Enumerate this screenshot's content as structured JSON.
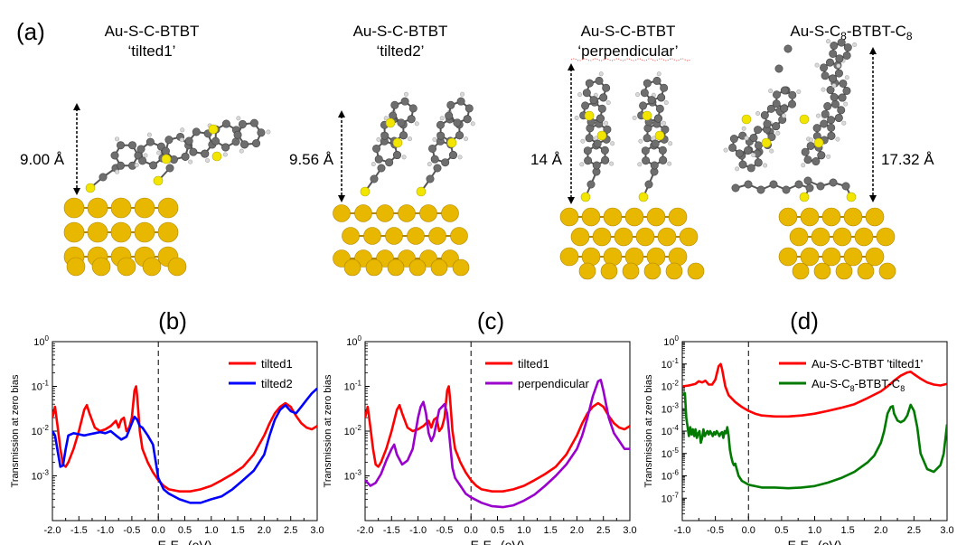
{
  "figure": {
    "label_a": "(a)",
    "molecules": [
      {
        "title_line1": "Au-S-C-BTBT",
        "title_line2": "‘tilted1’",
        "distance": "9.00 Å"
      },
      {
        "title_line1": "Au-S-C-BTBT",
        "title_line2": "‘tilted2’",
        "distance": "9.56 Å"
      },
      {
        "title_line1": "Au-S-C-BTBT",
        "title_line2": "‘perpendicular’",
        "distance": "14 Å"
      },
      {
        "title_line1_main": "Au-S-C",
        "title_line1_sub": "8",
        "title_line1_mid": "-BTBT-C",
        "title_line1_sub2": "8",
        "distance": "17.32 Å"
      }
    ],
    "colors": {
      "gold": "#e8b800",
      "gold_dark": "#b08600",
      "carbon": "#6e6e6e",
      "sulfur": "#f2e600",
      "hydrogen": "#d9d9d9"
    }
  },
  "chart_data": [
    {
      "type": "line",
      "panel_label": "(b)",
      "xlabel": "E-E",
      "xlabel_sub": "F",
      "xlabel_unit": " (eV)",
      "ylabel": "Transmission at zero bias",
      "yscale": "log",
      "xlim": [
        -2.0,
        3.0
      ],
      "ylim": [
        0.0001,
        1
      ],
      "xticks": [
        "-2.0",
        "-1.5",
        "-1.0",
        "-0.5",
        "0.0",
        "0.5",
        "1.0",
        "1.5",
        "2.0",
        "2.5",
        "3.0"
      ],
      "yticks": [
        {
          "base": "10",
          "exp": "-3",
          "v": -3
        },
        {
          "base": "10",
          "exp": "-2",
          "v": -2
        },
        {
          "base": "10",
          "exp": "-1",
          "v": -1
        },
        {
          "base": "10",
          "exp": "0",
          "v": 0
        }
      ],
      "legend_position": "top-right",
      "series": [
        {
          "name": "tilted1",
          "color": "#ff0000",
          "x": [
            -2.0,
            -1.95,
            -1.9,
            -1.85,
            -1.8,
            -1.75,
            -1.7,
            -1.6,
            -1.5,
            -1.4,
            -1.35,
            -1.3,
            -1.2,
            -1.1,
            -1.0,
            -0.9,
            -0.8,
            -0.75,
            -0.7,
            -0.65,
            -0.6,
            -0.55,
            -0.5,
            -0.45,
            -0.42,
            -0.4,
            -0.35,
            -0.3,
            -0.2,
            -0.1,
            0.0,
            0.1,
            0.2,
            0.4,
            0.6,
            0.8,
            1.0,
            1.2,
            1.4,
            1.6,
            1.8,
            2.0,
            2.1,
            2.2,
            2.3,
            2.4,
            2.5,
            2.6,
            2.7,
            2.8,
            2.9,
            3.0
          ],
          "y": [
            0.02,
            0.035,
            0.012,
            0.004,
            0.0018,
            0.0016,
            0.002,
            0.004,
            0.01,
            0.03,
            0.038,
            0.025,
            0.012,
            0.01,
            0.011,
            0.013,
            0.017,
            0.012,
            0.018,
            0.02,
            0.01,
            0.012,
            0.02,
            0.08,
            0.1,
            0.06,
            0.01,
            0.004,
            0.002,
            0.0012,
            0.0008,
            0.0006,
            0.0005,
            0.00045,
            0.00045,
            0.0005,
            0.0006,
            0.0008,
            0.0011,
            0.0016,
            0.003,
            0.008,
            0.015,
            0.025,
            0.035,
            0.042,
            0.035,
            0.022,
            0.015,
            0.012,
            0.011,
            0.013
          ]
        },
        {
          "name": "tilted2",
          "color": "#0000ff",
          "x": [
            -2.0,
            -1.95,
            -1.9,
            -1.85,
            -1.8,
            -1.75,
            -1.7,
            -1.6,
            -1.5,
            -1.4,
            -1.3,
            -1.2,
            -1.1,
            -1.0,
            -0.9,
            -0.8,
            -0.7,
            -0.6,
            -0.5,
            -0.45,
            -0.4,
            -0.35,
            -0.3,
            -0.2,
            -0.1,
            0.0,
            0.1,
            0.2,
            0.4,
            0.6,
            0.8,
            1.0,
            1.2,
            1.4,
            1.6,
            1.8,
            2.0,
            2.1,
            2.2,
            2.3,
            2.4,
            2.5,
            2.6,
            2.7,
            2.8,
            2.9,
            3.0
          ],
          "y": [
            0.01,
            0.008,
            0.0035,
            0.0016,
            0.0017,
            0.004,
            0.008,
            0.009,
            0.0085,
            0.008,
            0.0085,
            0.009,
            0.0095,
            0.009,
            0.01,
            0.008,
            0.0065,
            0.0075,
            0.015,
            0.021,
            0.018,
            0.013,
            0.012,
            0.008,
            0.005,
            0.0009,
            0.0005,
            0.0004,
            0.0003,
            0.00025,
            0.00025,
            0.0003,
            0.00035,
            0.0005,
            0.0008,
            0.0013,
            0.003,
            0.008,
            0.018,
            0.03,
            0.038,
            0.028,
            0.025,
            0.035,
            0.05,
            0.07,
            0.09
          ]
        }
      ]
    },
    {
      "type": "line",
      "panel_label": "(c)",
      "xlabel": "E-E",
      "xlabel_sub": "F",
      "xlabel_unit": " (eV)",
      "ylabel": "Transmission at zero bias",
      "yscale": "log",
      "xlim": [
        -2.0,
        3.0
      ],
      "ylim": [
        0.0001,
        1
      ],
      "xticks": [
        "-2.0",
        "-1.5",
        "-1.0",
        "-0.5",
        "0.0",
        "0.5",
        "1.0",
        "1.5",
        "2.0",
        "2.5",
        "3.0"
      ],
      "yticks": [
        {
          "base": "10",
          "exp": "-3",
          "v": -3
        },
        {
          "base": "10",
          "exp": "-2",
          "v": -2
        },
        {
          "base": "10",
          "exp": "-1",
          "v": -1
        },
        {
          "base": "10",
          "exp": "0",
          "v": 0
        }
      ],
      "legend_position": "top-right",
      "series": [
        {
          "name": "tilted1",
          "color": "#ff0000",
          "x": [
            -2.0,
            -1.95,
            -1.9,
            -1.85,
            -1.8,
            -1.75,
            -1.7,
            -1.6,
            -1.5,
            -1.4,
            -1.35,
            -1.3,
            -1.2,
            -1.1,
            -1.0,
            -0.9,
            -0.8,
            -0.75,
            -0.7,
            -0.65,
            -0.6,
            -0.55,
            -0.5,
            -0.45,
            -0.42,
            -0.4,
            -0.35,
            -0.3,
            -0.2,
            -0.1,
            0.0,
            0.1,
            0.2,
            0.4,
            0.6,
            0.8,
            1.0,
            1.2,
            1.4,
            1.6,
            1.8,
            2.0,
            2.1,
            2.2,
            2.3,
            2.4,
            2.5,
            2.6,
            2.7,
            2.8,
            2.9,
            3.0
          ],
          "y": [
            0.02,
            0.035,
            0.012,
            0.004,
            0.0018,
            0.0016,
            0.002,
            0.004,
            0.01,
            0.03,
            0.038,
            0.025,
            0.012,
            0.01,
            0.011,
            0.013,
            0.017,
            0.012,
            0.018,
            0.02,
            0.01,
            0.012,
            0.02,
            0.08,
            0.1,
            0.06,
            0.01,
            0.004,
            0.002,
            0.0012,
            0.0008,
            0.0006,
            0.0005,
            0.00045,
            0.00045,
            0.0005,
            0.0006,
            0.0008,
            0.0011,
            0.0016,
            0.003,
            0.008,
            0.015,
            0.025,
            0.035,
            0.042,
            0.035,
            0.022,
            0.015,
            0.012,
            0.011,
            0.013
          ]
        },
        {
          "name": "perpendicular",
          "color": "#9900cc",
          "x": [
            -2.0,
            -1.9,
            -1.8,
            -1.7,
            -1.6,
            -1.5,
            -1.45,
            -1.4,
            -1.3,
            -1.2,
            -1.1,
            -1.0,
            -0.95,
            -0.9,
            -0.85,
            -0.8,
            -0.75,
            -0.7,
            -0.6,
            -0.5,
            -0.45,
            -0.4,
            -0.35,
            -0.3,
            -0.2,
            -0.1,
            0.0,
            0.2,
            0.4,
            0.6,
            0.8,
            1.0,
            1.2,
            1.4,
            1.6,
            1.8,
            2.0,
            2.1,
            2.2,
            2.3,
            2.4,
            2.45,
            2.5,
            2.6,
            2.7,
            2.8,
            2.9,
            3.0
          ],
          "y": [
            0.0008,
            0.0006,
            0.0007,
            0.0011,
            0.0022,
            0.004,
            0.005,
            0.003,
            0.0018,
            0.0022,
            0.004,
            0.02,
            0.035,
            0.045,
            0.025,
            0.009,
            0.006,
            0.008,
            0.03,
            0.04,
            0.025,
            0.006,
            0.0015,
            0.0009,
            0.0006,
            0.0004,
            0.00033,
            0.00025,
            0.00021,
            0.0002,
            0.00022,
            0.00028,
            0.00038,
            0.0006,
            0.001,
            0.0018,
            0.004,
            0.008,
            0.02,
            0.06,
            0.13,
            0.14,
            0.08,
            0.02,
            0.009,
            0.006,
            0.004,
            0.004
          ]
        }
      ]
    },
    {
      "type": "line",
      "panel_label": "(d)",
      "xlabel": "E-E",
      "xlabel_sub": "F",
      "xlabel_unit": " (eV)",
      "ylabel": "Transmission at zero bias",
      "yscale": "log",
      "xlim": [
        -1.0,
        3.0
      ],
      "ylim": [
        1e-08,
        1
      ],
      "xticks": [
        "-1.0",
        "-0.5",
        "0.0",
        "0.5",
        "1.0",
        "1.5",
        "2.0",
        "2.5",
        "3.0"
      ],
      "yticks": [
        {
          "base": "10",
          "exp": "-7",
          "v": -7
        },
        {
          "base": "10",
          "exp": "-6",
          "v": -6
        },
        {
          "base": "10",
          "exp": "-5",
          "v": -5
        },
        {
          "base": "10",
          "exp": "-4",
          "v": -4
        },
        {
          "base": "10",
          "exp": "-3",
          "v": -3
        },
        {
          "base": "10",
          "exp": "-2",
          "v": -2
        },
        {
          "base": "10",
          "exp": "-1",
          "v": -1
        },
        {
          "base": "10",
          "exp": "0",
          "v": 0
        }
      ],
      "legend_position": "top-right",
      "series": [
        {
          "name": "Au-S-C-BTBT 'tilted1'",
          "color": "#ff0000",
          "x": [
            -1.0,
            -0.9,
            -0.8,
            -0.75,
            -0.7,
            -0.65,
            -0.6,
            -0.55,
            -0.5,
            -0.45,
            -0.42,
            -0.4,
            -0.35,
            -0.3,
            -0.2,
            -0.1,
            0.0,
            0.1,
            0.2,
            0.4,
            0.6,
            0.8,
            1.0,
            1.2,
            1.4,
            1.6,
            1.8,
            2.0,
            2.1,
            2.2,
            2.3,
            2.4,
            2.45,
            2.5,
            2.6,
            2.7,
            2.8,
            2.9,
            3.0
          ],
          "y": [
            0.01,
            0.011,
            0.013,
            0.017,
            0.015,
            0.018,
            0.012,
            0.012,
            0.02,
            0.08,
            0.1,
            0.06,
            0.01,
            0.004,
            0.002,
            0.0012,
            0.0008,
            0.0006,
            0.0005,
            0.00045,
            0.00045,
            0.0005,
            0.0006,
            0.0008,
            0.0011,
            0.0016,
            0.003,
            0.006,
            0.01,
            0.018,
            0.03,
            0.042,
            0.045,
            0.035,
            0.022,
            0.015,
            0.012,
            0.011,
            0.013
          ]
        },
        {
          "name": "Au-S-C",
          "name_sub": "8",
          "name_rest": "-BTBT-C",
          "name_sub2": "8",
          "color": "#007a00",
          "x": [
            -1.0,
            -0.98,
            -0.96,
            -0.94,
            -0.92,
            -0.9,
            -0.88,
            -0.86,
            -0.84,
            -0.82,
            -0.8,
            -0.78,
            -0.76,
            -0.74,
            -0.72,
            -0.7,
            -0.68,
            -0.66,
            -0.64,
            -0.62,
            -0.6,
            -0.58,
            -0.56,
            -0.54,
            -0.52,
            -0.5,
            -0.48,
            -0.46,
            -0.44,
            -0.42,
            -0.4,
            -0.38,
            -0.36,
            -0.34,
            -0.32,
            -0.3,
            -0.28,
            -0.26,
            -0.24,
            -0.22,
            -0.2,
            -0.15,
            -0.1,
            0.0,
            0.2,
            0.4,
            0.6,
            0.8,
            1.0,
            1.2,
            1.4,
            1.6,
            1.8,
            1.9,
            2.0,
            2.05,
            2.1,
            2.15,
            2.18,
            2.2,
            2.25,
            2.3,
            2.35,
            2.4,
            2.45,
            2.5,
            2.55,
            2.6,
            2.7,
            2.8,
            2.9,
            2.95,
            3.0
          ],
          "y": [
            0.005,
            0.0045,
            0.005,
            0.0004,
            0.00015,
            6e-05,
            0.00015,
            7e-05,
            0.00012,
            6e-05,
            0.00012,
            5e-05,
            8e-05,
            0.0001,
            3e-05,
            5e-05,
            0.00012,
            6e-05,
            8e-05,
            0.0001,
            7e-05,
            0.0001,
            8e-05,
            6e-05,
            9e-05,
            7e-05,
            0.0001,
            8e-05,
            6e-05,
            8e-05,
            9e-05,
            5e-05,
            0.0001,
            8e-05,
            0.00015,
            6e-05,
            1.5e-05,
            7e-06,
            4e-06,
            3e-06,
            3.5e-06,
            1e-06,
            6e-07,
            4e-07,
            3e-07,
            3e-07,
            2.8e-07,
            3e-07,
            3.5e-07,
            5e-07,
            8e-07,
            1.5e-06,
            4e-06,
            8e-06,
            3e-05,
            0.0001,
            0.0006,
            0.0012,
            0.0013,
            0.0006,
            0.0003,
            0.00025,
            0.0003,
            0.0005,
            0.0015,
            0.0008,
            0.00015,
            1e-05,
            2e-06,
            1.5e-06,
            3e-06,
            1e-05,
            0.0002
          ]
        }
      ]
    }
  ]
}
